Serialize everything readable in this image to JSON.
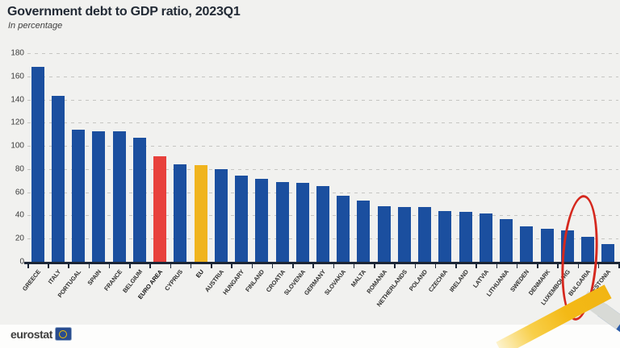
{
  "header": {
    "title": "Government debt to GDP ratio, 2023Q1",
    "subtitle": "In percentage"
  },
  "footer": {
    "logo_text": "eurostat"
  },
  "colors": {
    "bar": "#1b4f9f",
    "euro_area_bar": "#e8413c",
    "eu_bar": "#f0b41e",
    "highlight_ellipse": "#d5281e",
    "axis": "#1c2636",
    "chart_background": "#f1f1ef"
  },
  "chart_data": {
    "type": "bar",
    "title": "Government debt to GDP ratio, 2023Q1",
    "subtitle": "In percentage",
    "xlabel": "",
    "ylabel": "In percentage",
    "ylim": [
      0,
      180
    ],
    "yticks": [
      0,
      20,
      40,
      60,
      80,
      100,
      120,
      140,
      160,
      180
    ],
    "grid": "dashed horizontal",
    "legend": "none",
    "categories": [
      "GREECE",
      "ITALY",
      "PORTUGAL",
      "SPAIN",
      "FRANCE",
      "BELGIUM",
      "EURO AREA",
      "CYPRUS",
      "EU",
      "AUSTRIA",
      "HUNGARY",
      "FINLAND",
      "CROATIA",
      "SLOVENIA",
      "GERMANY",
      "SLOVAKIA",
      "MALTA",
      "ROMANIA",
      "NETHERLANDS",
      "POLAND",
      "CZECHIA",
      "IRELAND",
      "LATVIA",
      "LITHUANIA",
      "SWEDEN",
      "DENMARK",
      "LUXEMBOURG",
      "BULGARIA",
      "ESTONIA"
    ],
    "values": [
      168.3,
      143.5,
      113.8,
      112.8,
      112.4,
      107.0,
      91.2,
      84.0,
      83.7,
      79.9,
      74.1,
      71.6,
      68.9,
      68.4,
      65.4,
      57.3,
      52.7,
      48.2,
      47.6,
      47.1,
      43.7,
      42.9,
      41.9,
      37.1,
      30.4,
      28.5,
      26.8,
      21.5,
      15.3
    ],
    "highlights": {
      "EURO AREA": {
        "color": "#e8413c",
        "bold": true
      },
      "EU": {
        "color": "#f0b41e",
        "bold": true
      }
    },
    "circled_category": "BULGARIA"
  }
}
